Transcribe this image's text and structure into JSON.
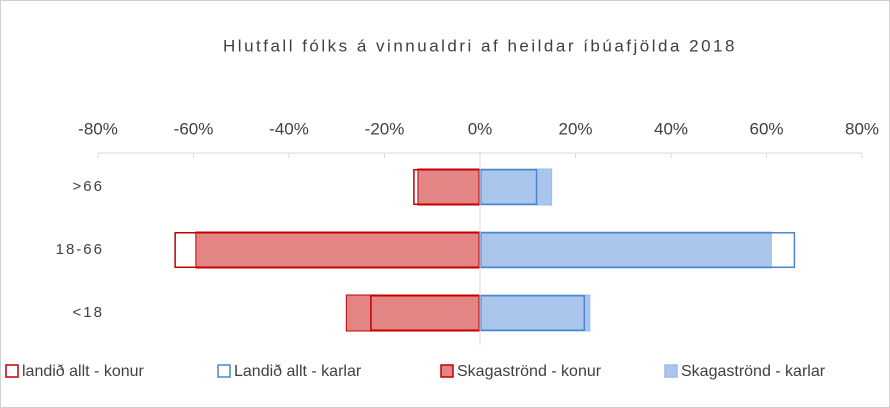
{
  "chart_data": {
    "type": "bar",
    "orientation": "horizontal",
    "title": "Hlutfall fólks á vinnualdri af heildar íbúafjölda 2018",
    "categories": [
      ">66",
      "18-66",
      "<18"
    ],
    "xlim": [
      -80,
      80
    ],
    "xticks": [
      {
        "value": -80,
        "label": "-80%"
      },
      {
        "value": -60,
        "label": "-60%"
      },
      {
        "value": -40,
        "label": "-40%"
      },
      {
        "value": -20,
        "label": "-20%"
      },
      {
        "value": 0,
        "label": "0%"
      },
      {
        "value": 20,
        "label": "20%"
      },
      {
        "value": 40,
        "label": "40%"
      },
      {
        "value": 60,
        "label": "60%"
      },
      {
        "value": 80,
        "label": "80%"
      }
    ],
    "legend": "bottom",
    "series": [
      {
        "name": "Skagaströnd - konur",
        "color": "#c00000",
        "fill_color": "#e38585",
        "values": [
          -13,
          -59.5,
          -28
        ]
      },
      {
        "name": "Skagaströnd - karlar",
        "color": "#9dbbe8",
        "fill_color": "#abc6ec",
        "values": [
          15,
          61,
          23
        ]
      },
      {
        "name": "landið allt - konur",
        "color": "#c00000",
        "fill_color": null,
        "values": [
          -14,
          -64,
          -23
        ]
      },
      {
        "name": "Landið allt - karlar",
        "color": "#4a86d0",
        "fill_color": null,
        "values": [
          12,
          66,
          22
        ]
      }
    ]
  }
}
